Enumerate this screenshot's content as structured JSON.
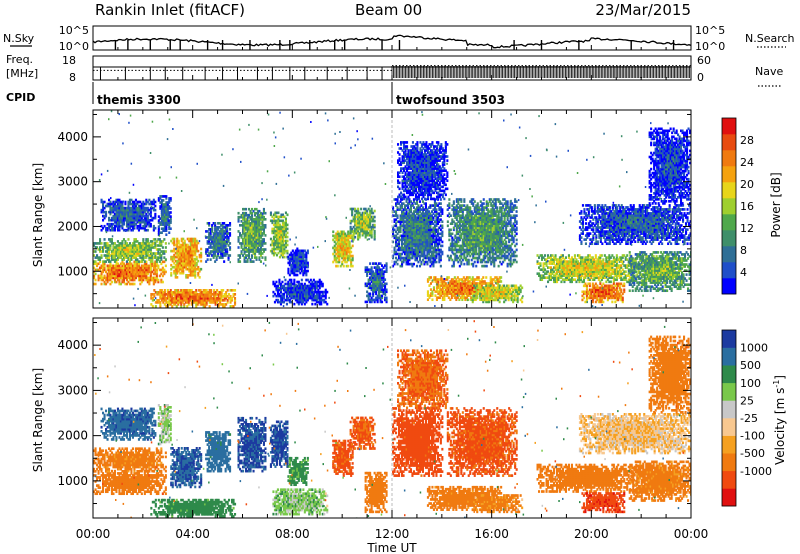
{
  "header": {
    "station": "Rankin Inlet (fitACF)",
    "beam": "Beam 00",
    "date": "23/Mar/2015"
  },
  "noise_panel": {
    "left_label": "N.Sky",
    "right_label": "N.Search",
    "left_ticks": [
      "10^5",
      "10^0"
    ],
    "right_ticks": [
      "10^5",
      "10^0"
    ]
  },
  "freq_panel": {
    "left_label_line1": "Freq.",
    "left_label_line2": "[MHz]",
    "right_label": "Nave",
    "left_ticks": [
      "18",
      "8"
    ],
    "right_ticks": [
      "60",
      "0"
    ],
    "baseline_freq_mhz": 10,
    "nave_segments": [
      {
        "start_h": 0.0,
        "end_h": 12.0,
        "nave": 24
      },
      {
        "start_h": 12.0,
        "end_h": 24.0,
        "nave": 36
      }
    ]
  },
  "cpid": {
    "label": "CPID",
    "modes": [
      {
        "start_h": 0.0,
        "label": "themis 3300"
      },
      {
        "start_h": 12.0,
        "label": "twofsound 3503"
      }
    ]
  },
  "axes": {
    "ylabel": "Slant Range [km]",
    "xlabel": "Time UT",
    "yticks": [
      1000,
      2000,
      3000,
      4000
    ],
    "xticks": [
      "00:00",
      "04:00",
      "08:00",
      "12:00",
      "16:00",
      "20:00",
      "00:00"
    ]
  },
  "power_colorbar": {
    "label": "Power [dB]",
    "ticks": [
      "28",
      "24",
      "20",
      "16",
      "12",
      "8",
      "4"
    ],
    "colors": [
      "#0000ff",
      "#1f4fc9",
      "#2f6f96",
      "#3f8f6a",
      "#4fa84b",
      "#9fcf2f",
      "#e8d51a",
      "#f5a20f",
      "#f07a10",
      "#e84b10",
      "#e01010"
    ]
  },
  "velocity_colorbar": {
    "label": "Velocity [m s",
    "label_sup": "-1",
    "label_end": "]",
    "ticks": [
      "1000",
      "500",
      "100",
      "25",
      "-25",
      "-100",
      "-500",
      "-1000"
    ],
    "colors": [
      "#e01010",
      "#f04a10",
      "#f07a10",
      "#f5a020",
      "#f8c890",
      "#c8c8c8",
      "#79c84a",
      "#2e8a4a",
      "#2a6ea0",
      "#1c3aa0"
    ]
  },
  "chart_data": {
    "type": "heatmap",
    "x_range_hours": [
      0,
      24
    ],
    "y_range_km": [
      180,
      4600
    ],
    "power_db_range": [
      0,
      32
    ],
    "velocity_range_ms": [
      -1250,
      1250
    ],
    "series": [
      {
        "name": "Power [dB]",
        "field": "power"
      },
      {
        "name": "Velocity [m s-1]",
        "field": "velocity"
      }
    ],
    "regions": [
      {
        "t0": 0.0,
        "t1": 2.9,
        "r0": 700,
        "r1": 1200,
        "p": 27,
        "v": -200
      },
      {
        "t0": 0.0,
        "t1": 2.9,
        "r0": 1200,
        "r1": 1700,
        "p": 18,
        "v": -100
      },
      {
        "t0": 0.3,
        "t1": 2.5,
        "r0": 1900,
        "r1": 2600,
        "p": 8,
        "v": 600
      },
      {
        "t0": 2.6,
        "t1": 3.1,
        "r0": 1800,
        "r1": 2700,
        "p": 9,
        "v": 30
      },
      {
        "t0": 3.1,
        "t1": 4.3,
        "r0": 850,
        "r1": 1750,
        "p": 25,
        "v": 700
      },
      {
        "t0": 2.3,
        "t1": 5.7,
        "r0": 200,
        "r1": 600,
        "p": 27,
        "v": 120
      },
      {
        "t0": 4.5,
        "t1": 5.5,
        "r0": 1200,
        "r1": 2100,
        "p": 10,
        "v": 500
      },
      {
        "t0": 5.8,
        "t1": 6.9,
        "r0": 1200,
        "r1": 2400,
        "p": 15,
        "v": 800
      },
      {
        "t0": 7.1,
        "t1": 7.8,
        "r0": 1300,
        "r1": 2300,
        "p": 18,
        "v": 900
      },
      {
        "t0": 7.8,
        "t1": 8.6,
        "r0": 900,
        "r1": 1500,
        "p": 6,
        "v": 80
      },
      {
        "t0": 7.2,
        "t1": 9.4,
        "r0": 250,
        "r1": 800,
        "p": 6,
        "v": 40
      },
      {
        "t0": 9.6,
        "t1": 10.4,
        "r0": 1100,
        "r1": 1900,
        "p": 22,
        "v": -400
      },
      {
        "t0": 10.3,
        "t1": 11.3,
        "r0": 1700,
        "r1": 2400,
        "p": 17,
        "v": -350
      },
      {
        "t0": 10.9,
        "t1": 11.8,
        "r0": 300,
        "r1": 1200,
        "p": 9,
        "v": -150
      },
      {
        "t0": 12.0,
        "t1": 14.0,
        "r0": 1100,
        "r1": 2600,
        "p": 10,
        "v": -500
      },
      {
        "t0": 12.2,
        "t1": 14.2,
        "r0": 2600,
        "r1": 3900,
        "p": 6,
        "v": -300
      },
      {
        "t0": 13.4,
        "t1": 16.4,
        "r0": 350,
        "r1": 850,
        "p": 26,
        "v": -120
      },
      {
        "t0": 14.2,
        "t1": 17.0,
        "r0": 1100,
        "r1": 2600,
        "p": 13,
        "v": -400
      },
      {
        "t0": 15.2,
        "t1": 17.2,
        "r0": 300,
        "r1": 700,
        "p": 20,
        "v": -80
      },
      {
        "t0": 17.8,
        "t1": 21.8,
        "r0": 750,
        "r1": 1350,
        "p": 20,
        "v": -150
      },
      {
        "t0": 19.6,
        "t1": 21.3,
        "r0": 300,
        "r1": 750,
        "p": 28,
        "v": -600
      },
      {
        "t0": 19.5,
        "t1": 24.0,
        "r0": 1600,
        "r1": 2500,
        "p": 8,
        "v": -20
      },
      {
        "t0": 21.5,
        "t1": 24.0,
        "r0": 550,
        "r1": 1450,
        "p": 15,
        "v": -100
      },
      {
        "t0": 22.3,
        "t1": 24.0,
        "r0": 2500,
        "r1": 4200,
        "p": 6,
        "v": -200
      }
    ]
  }
}
